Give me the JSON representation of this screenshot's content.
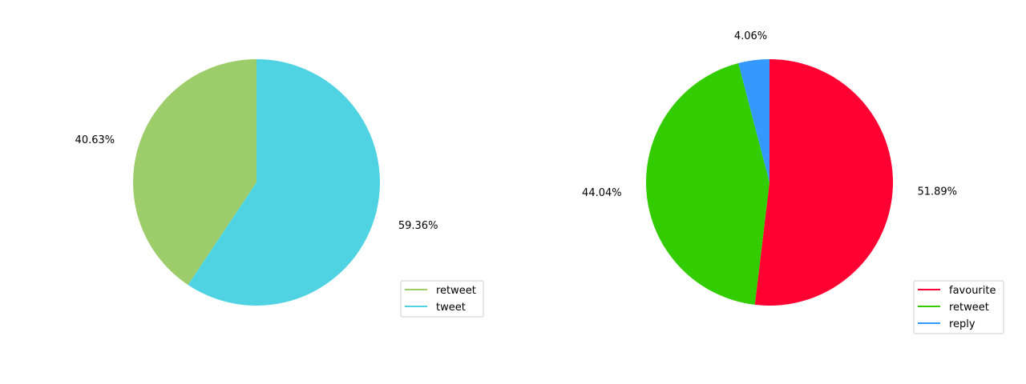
{
  "chart_data": [
    {
      "type": "pie",
      "title": "",
      "slices": [
        {
          "label": "retweet",
          "value": 40.63,
          "display": "40.63%",
          "color": "#9dcd6a"
        },
        {
          "label": "tweet",
          "value": 59.36,
          "display": "59.36%",
          "color": "#4fd2e2"
        }
      ],
      "start_angle_deg": 90,
      "direction": "counterclockwise",
      "legend": {
        "placement": "lower-right",
        "entries": [
          "retweet",
          "tweet"
        ]
      }
    },
    {
      "type": "pie",
      "title": "",
      "slices": [
        {
          "label": "favourite",
          "value": 51.89,
          "display": "51.89%",
          "color": "#ff0033"
        },
        {
          "label": "retweet",
          "value": 44.04,
          "display": "44.04%",
          "color": "#33cc00"
        },
        {
          "label": "reply",
          "value": 4.06,
          "display": "4.06%",
          "color": "#3399ff"
        }
      ],
      "start_angle_deg": 90,
      "direction": "clockwise",
      "legend": {
        "placement": "lower-right",
        "entries": [
          "favourite",
          "retweet",
          "reply"
        ]
      }
    }
  ]
}
